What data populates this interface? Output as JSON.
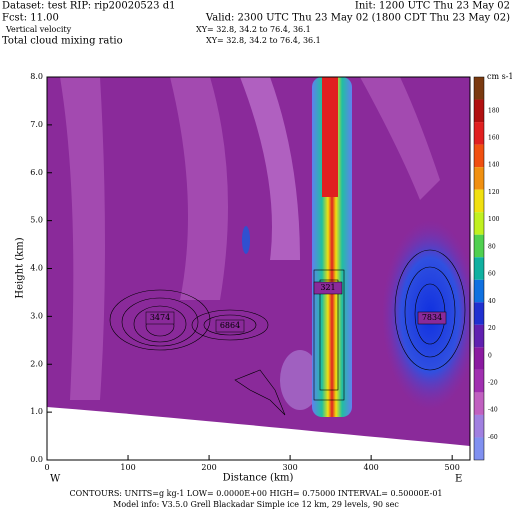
{
  "header": {
    "line1_left": "Dataset: test  RIP: rip20020523 d1",
    "line1_right": "Init: 1200 UTC Thu 23 May 02",
    "line2_left": "Fcst:   11.00",
    "line2_right": "Valid: 2300 UTC Thu 23 May 02 (1800 CDT Thu 23 May 02)",
    "line3_left": "Vertical velocity",
    "line3_right": "XY=  32.8, 34.2 to  76.4, 36.1",
    "line4_left": "Total cloud mixing ratio",
    "line4_right": "XY=  32.8, 34.2 to  76.4, 36.1"
  },
  "chart_data": {
    "type": "contour",
    "xlabel": "Distance (km)",
    "ylabel": "Height (km)",
    "xlim": [
      0,
      522
    ],
    "xticks": [
      0,
      100,
      200,
      300,
      400,
      500
    ],
    "ylim": [
      0,
      8
    ],
    "yticks": [
      {
        "value": 0,
        "label": "0.0"
      },
      {
        "value": 1,
        "label": "1.0"
      },
      {
        "value": 2,
        "label": "2.0"
      },
      {
        "value": 3,
        "label": "3.0"
      },
      {
        "value": 4,
        "label": "4.0"
      },
      {
        "value": 5,
        "label": "5.0"
      },
      {
        "value": 6,
        "label": "6.0"
      },
      {
        "value": 7,
        "label": "7.0"
      },
      {
        "value": 8,
        "label": "8.0"
      }
    ],
    "left_end": "W",
    "right_end": "E",
    "annotations": [
      "3474",
      "6864",
      "321",
      "7834"
    ],
    "colorbar": {
      "unit": "cm s-1",
      "ticks": [
        180,
        160,
        140,
        120,
        100,
        80,
        60,
        40,
        20,
        0,
        -20,
        -40,
        -60
      ],
      "colors": [
        "#7a3a10",
        "#b01010",
        "#e02020",
        "#f05010",
        "#f09010",
        "#f0e010",
        "#c0f020",
        "#50d050",
        "#10b0a0",
        "#1070e0",
        "#2030d0",
        "#6020b0",
        "#8a1aa0",
        "#a030b0",
        "#c060c0",
        "#a080e0",
        "#8090f0"
      ]
    }
  },
  "footer": {
    "line1": "CONTOURS:  UNITS=g kg-1  LOW= 0.0000E+00  HIGH= 0.75000   INTERVAL= 0.50000E-01",
    "line2": "Model info: V3.5.0   Grell     Blackadar   Simple ice    12 km,  29 levels,   90 sec"
  }
}
